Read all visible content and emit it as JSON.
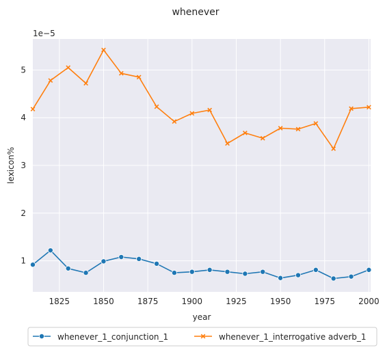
{
  "chart_data": {
    "type": "line",
    "title": "whenever",
    "xlabel": "year",
    "ylabel": "lexicon%",
    "y_offset_label": "1e−5",
    "y_scale_factor": 1e-05,
    "xlim": [
      1810,
      2001
    ],
    "ylim": [
      0.35,
      5.65
    ],
    "x_ticks": [
      1825,
      1850,
      1875,
      1900,
      1925,
      1950,
      1975,
      2000
    ],
    "y_ticks": [
      1,
      2,
      3,
      4,
      5
    ],
    "grid": true,
    "legend_position": "bottom-center",
    "x": [
      1810,
      1820,
      1830,
      1840,
      1850,
      1860,
      1870,
      1880,
      1890,
      1900,
      1910,
      1920,
      1930,
      1940,
      1950,
      1960,
      1970,
      1980,
      1990,
      2000
    ],
    "series": [
      {
        "name": "whenever_1_conjunction_1",
        "color": "#1f77b4",
        "marker": "circle",
        "values": [
          0.92,
          1.22,
          0.84,
          0.75,
          0.99,
          1.08,
          1.04,
          0.94,
          0.75,
          0.77,
          0.81,
          0.77,
          0.73,
          0.77,
          0.64,
          0.7,
          0.81,
          0.63,
          0.67,
          0.81
        ]
      },
      {
        "name": "whenever_1_interrogative adverb_1",
        "color": "#ff7f0e",
        "marker": "x",
        "values": [
          4.18,
          4.78,
          5.05,
          4.72,
          5.42,
          4.93,
          4.85,
          4.23,
          3.92,
          4.09,
          4.16,
          3.46,
          3.68,
          3.57,
          3.78,
          3.76,
          3.88,
          3.35,
          4.19,
          4.22
        ]
      }
    ]
  }
}
